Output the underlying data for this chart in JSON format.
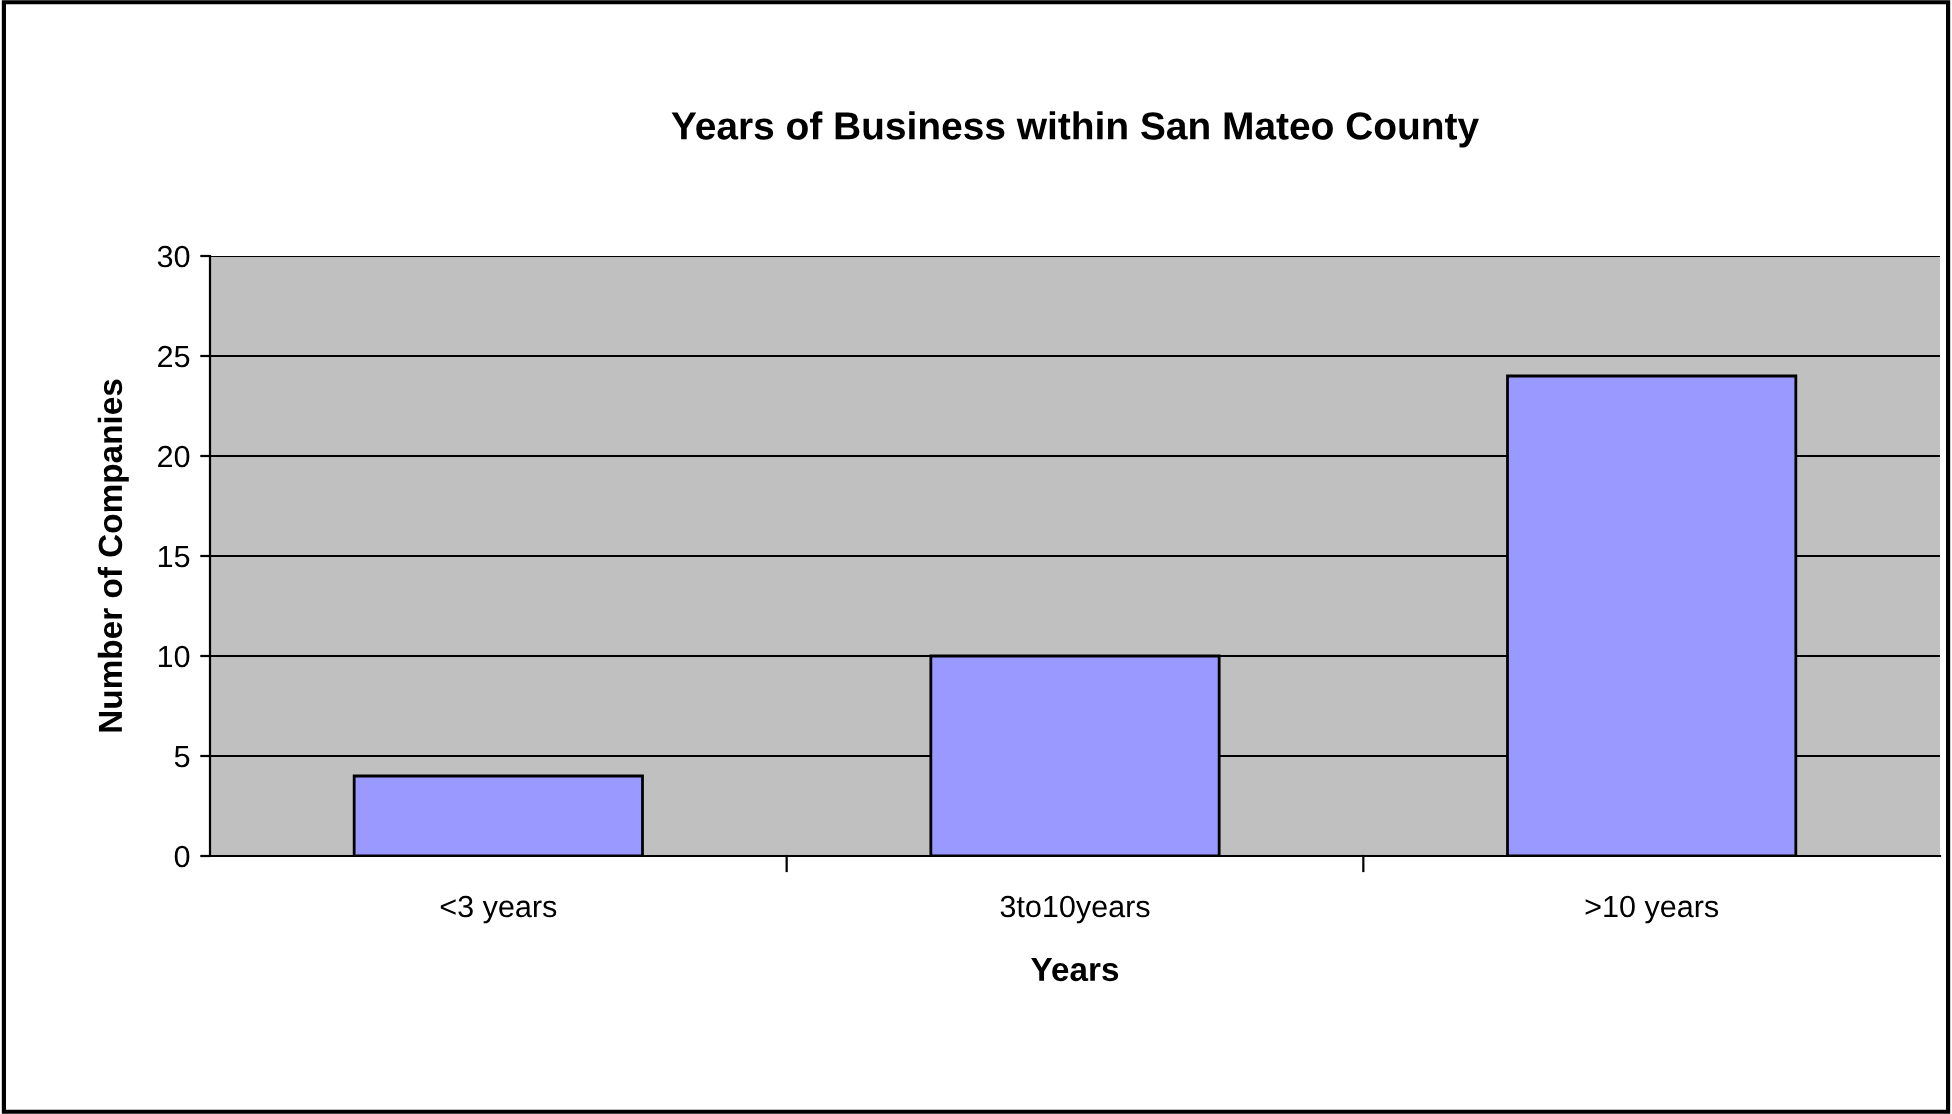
{
  "chart_data": {
    "type": "bar",
    "title": "Years of Business within San Mateo County",
    "xlabel": "Years",
    "ylabel": "Number of Companies",
    "categories": [
      "<3 years",
      "3to10years",
      ">10 years"
    ],
    "values": [
      4,
      10,
      24
    ],
    "color": "#9999ff",
    "ylim": [
      0,
      30
    ],
    "yticks": [
      0,
      5,
      10,
      15,
      20,
      25,
      30
    ],
    "grid": "y"
  }
}
